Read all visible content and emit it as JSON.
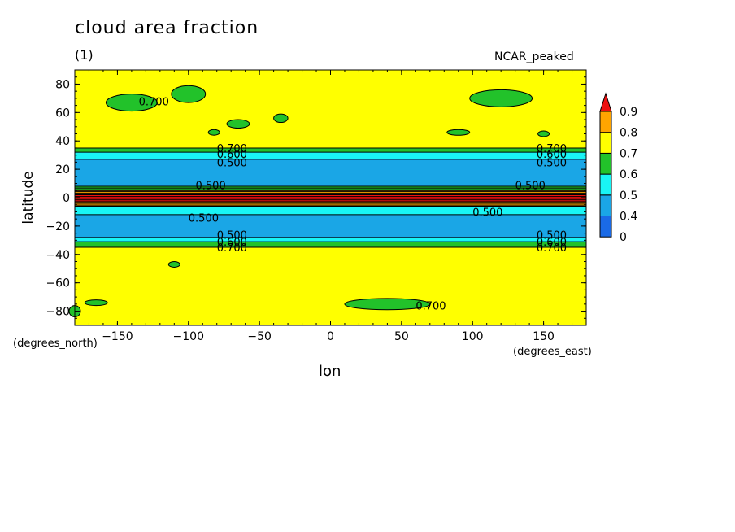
{
  "colors": {
    "bin_0_4": "#1a6ae6",
    "bin_4_5": "#1aa6e6",
    "bin_5_6": "#19f5f5",
    "bin_6_7": "#22c22a",
    "bin_7_8": "#ffff00",
    "bin_8_9": "#ffa500",
    "bin_9_up": "#ee1111"
  },
  "chart_data": {
    "type": "heatmap",
    "title": "cloud area fraction",
    "subtitle": "(1)",
    "top_right_label": "NCAR_peaked",
    "xlabel": "lon",
    "ylabel": "latitude",
    "x_units": "(degrees_east)",
    "y_units": "(degrees_north)",
    "xlim": [
      -180,
      180
    ],
    "ylim": [
      -90,
      90
    ],
    "x_ticks": [
      -150,
      -100,
      -50,
      0,
      50,
      100,
      150
    ],
    "y_ticks": [
      80,
      60,
      40,
      20,
      0,
      -20,
      -40,
      -60,
      -80
    ],
    "colorbar": {
      "levels": [
        0,
        0.4,
        0.5,
        0.6,
        0.7,
        0.8,
        0.9
      ],
      "labels": [
        "0",
        "0.4",
        "0.5",
        "0.6",
        "0.7",
        "0.8",
        "0.9"
      ],
      "extend": "max"
    },
    "zonal_bands": [
      {
        "lat_from": 90,
        "lat_to": 35,
        "value": 0.75
      },
      {
        "lat_from": 35,
        "lat_to": 32,
        "value": 0.65
      },
      {
        "lat_from": 32,
        "lat_to": 27,
        "value": 0.55
      },
      {
        "lat_from": 27,
        "lat_to": 8,
        "value": 0.45
      },
      {
        "lat_from": 8,
        "lat_to": 5,
        "value": 0.65
      },
      {
        "lat_from": 5,
        "lat_to": 2,
        "value": 0.85
      },
      {
        "lat_from": 2,
        "lat_to": -3,
        "value": 0.95
      },
      {
        "lat_from": -3,
        "lat_to": -6,
        "value": 0.85
      },
      {
        "lat_from": -6,
        "lat_to": -12,
        "value": 0.55
      },
      {
        "lat_from": -12,
        "lat_to": -28,
        "value": 0.45
      },
      {
        "lat_from": -28,
        "lat_to": -31,
        "value": 0.55
      },
      {
        "lat_from": -31,
        "lat_to": -35,
        "value": 0.65
      },
      {
        "lat_from": -35,
        "lat_to": -90,
        "value": 0.75
      }
    ],
    "contour_labels": [
      {
        "text": "0.700",
        "lon": -135,
        "lat": 68
      },
      {
        "text": "0.700",
        "lon": -80,
        "lat": 35
      },
      {
        "text": "0.600",
        "lon": -80,
        "lat": 31
      },
      {
        "text": "0.500",
        "lon": -80,
        "lat": 25
      },
      {
        "text": "0.500",
        "lon": -95,
        "lat": 9
      },
      {
        "text": "0.500",
        "lon": -100,
        "lat": -14
      },
      {
        "text": "0.500",
        "lon": -80,
        "lat": -26
      },
      {
        "text": "0.600",
        "lon": -80,
        "lat": -31
      },
      {
        "text": "0.700",
        "lon": -80,
        "lat": -35
      },
      {
        "text": "0.700",
        "lon": 145,
        "lat": 35
      },
      {
        "text": "0.600",
        "lon": 145,
        "lat": 31
      },
      {
        "text": "0.500",
        "lon": 145,
        "lat": 25
      },
      {
        "text": "0.500",
        "lon": 130,
        "lat": 9
      },
      {
        "text": "0.500",
        "lon": 100,
        "lat": -10
      },
      {
        "text": "0.500",
        "lon": 145,
        "lat": -26
      },
      {
        "text": "0.600",
        "lon": 145,
        "lat": -31
      },
      {
        "text": "0.700",
        "lon": 145,
        "lat": -35
      },
      {
        "text": "0.700",
        "lon": 60,
        "lat": -76
      }
    ],
    "patches": [
      {
        "lon": -140,
        "lat": 67,
        "dlon": 18,
        "dlat": 6,
        "value": 0.65
      },
      {
        "lon": -100,
        "lat": 73,
        "dlon": 12,
        "dlat": 6,
        "value": 0.65
      },
      {
        "lon": -65,
        "lat": 52,
        "dlon": 8,
        "dlat": 3,
        "value": 0.65
      },
      {
        "lon": -35,
        "lat": 56,
        "dlon": 5,
        "dlat": 3,
        "value": 0.65
      },
      {
        "lon": 120,
        "lat": 70,
        "dlon": 22,
        "dlat": 6,
        "value": 0.65
      },
      {
        "lon": 90,
        "lat": 46,
        "dlon": 8,
        "dlat": 2,
        "value": 0.65
      },
      {
        "lon": 150,
        "lat": 45,
        "dlon": 4,
        "dlat": 2,
        "value": 0.65
      },
      {
        "lon": -82,
        "lat": 46,
        "dlon": 4,
        "dlat": 2,
        "value": 0.65
      },
      {
        "lon": 40,
        "lat": -75,
        "dlon": 30,
        "dlat": 4,
        "value": 0.65
      },
      {
        "lon": -165,
        "lat": -74,
        "dlon": 8,
        "dlat": 2,
        "value": 0.65
      },
      {
        "lon": -110,
        "lat": -47,
        "dlon": 4,
        "dlat": 2,
        "value": 0.65
      },
      {
        "lon": -180,
        "lat": -80,
        "dlon": 4,
        "dlat": 4,
        "value": 0.65
      }
    ]
  }
}
